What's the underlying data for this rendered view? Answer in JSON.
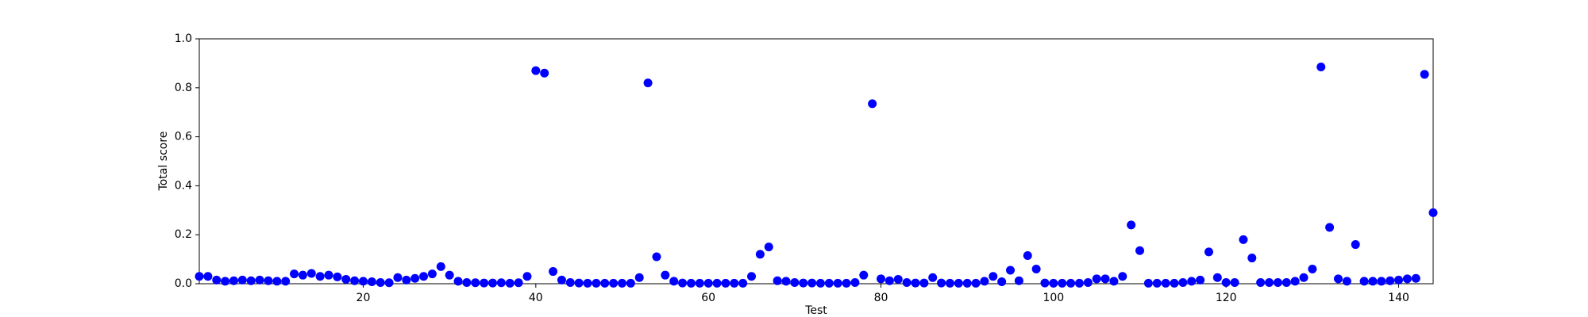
{
  "chart_data": {
    "type": "scatter",
    "x_label": "Test",
    "y_label": "Total score",
    "color": "#0000ff",
    "xlim": [
      1,
      144
    ],
    "ylim": [
      0,
      1
    ],
    "xticks": [
      20,
      40,
      60,
      80,
      100,
      120,
      140
    ],
    "yticks": [
      {
        "value": 0,
        "label": "0.0"
      },
      0.2,
      0.4,
      0.6,
      0.8,
      {
        "value": 1,
        "label": "1.0"
      }
    ],
    "grid": false,
    "x": [
      1,
      2,
      3,
      4,
      5,
      6,
      7,
      8,
      9,
      10,
      11,
      12,
      13,
      14,
      15,
      16,
      17,
      18,
      19,
      20,
      21,
      22,
      23,
      24,
      25,
      26,
      27,
      28,
      29,
      30,
      31,
      32,
      33,
      34,
      35,
      36,
      37,
      38,
      39,
      40,
      41,
      42,
      43,
      44,
      45,
      46,
      47,
      48,
      49,
      50,
      51,
      52,
      53,
      54,
      55,
      56,
      57,
      58,
      59,
      60,
      61,
      62,
      63,
      64,
      65,
      66,
      67,
      68,
      69,
      70,
      71,
      72,
      73,
      74,
      75,
      76,
      77,
      78,
      79,
      80,
      81,
      82,
      83,
      84,
      85,
      86,
      87,
      88,
      89,
      90,
      91,
      92,
      93,
      94,
      95,
      96,
      97,
      98,
      99,
      100,
      101,
      102,
      103,
      104,
      105,
      106,
      107,
      108,
      109,
      110,
      111,
      112,
      113,
      114,
      115,
      116,
      117,
      118,
      119,
      120,
      121,
      122,
      123,
      124,
      125,
      126,
      127,
      128,
      129,
      130,
      131,
      132,
      133,
      134,
      135,
      136,
      137,
      138,
      139,
      140,
      141,
      142,
      143,
      144
    ],
    "values": [
      0.03,
      0.03,
      0.015,
      0.01,
      0.012,
      0.015,
      0.012,
      0.015,
      0.012,
      0.01,
      0.01,
      0.04,
      0.035,
      0.042,
      0.03,
      0.035,
      0.028,
      0.018,
      0.012,
      0.01,
      0.008,
      0.005,
      0.004,
      0.025,
      0.015,
      0.022,
      0.03,
      0.04,
      0.07,
      0.035,
      0.01,
      0.005,
      0.004,
      0.003,
      0.003,
      0.004,
      0.002,
      0.004,
      0.03,
      0.87,
      0.86,
      0.05,
      0.015,
      0.005,
      0.003,
      0.002,
      0.002,
      0.002,
      0.002,
      0.002,
      0.002,
      0.025,
      0.82,
      0.11,
      0.035,
      0.01,
      0.003,
      0.002,
      0.002,
      0.002,
      0.002,
      0.002,
      0.002,
      0.002,
      0.03,
      0.12,
      0.15,
      0.012,
      0.01,
      0.005,
      0.003,
      0.003,
      0.002,
      0.002,
      0.002,
      0.002,
      0.005,
      0.035,
      0.735,
      0.02,
      0.012,
      0.018,
      0.005,
      0.003,
      0.003,
      0.025,
      0.003,
      0.002,
      0.002,
      0.002,
      0.002,
      0.01,
      0.03,
      0.008,
      0.055,
      0.012,
      0.115,
      0.06,
      0.003,
      0.002,
      0.002,
      0.002,
      0.002,
      0.005,
      0.02,
      0.02,
      0.01,
      0.03,
      0.24,
      0.135,
      0.002,
      0.002,
      0.002,
      0.002,
      0.005,
      0.01,
      0.015,
      0.13,
      0.025,
      0.005,
      0.005,
      0.18,
      0.105,
      0.005,
      0.005,
      0.005,
      0.005,
      0.01,
      0.025,
      0.06,
      0.885,
      0.23,
      0.02,
      0.01,
      0.16,
      0.01,
      0.01,
      0.01,
      0.012,
      0.015,
      0.02,
      0.022,
      0.855,
      0.29
    ]
  }
}
